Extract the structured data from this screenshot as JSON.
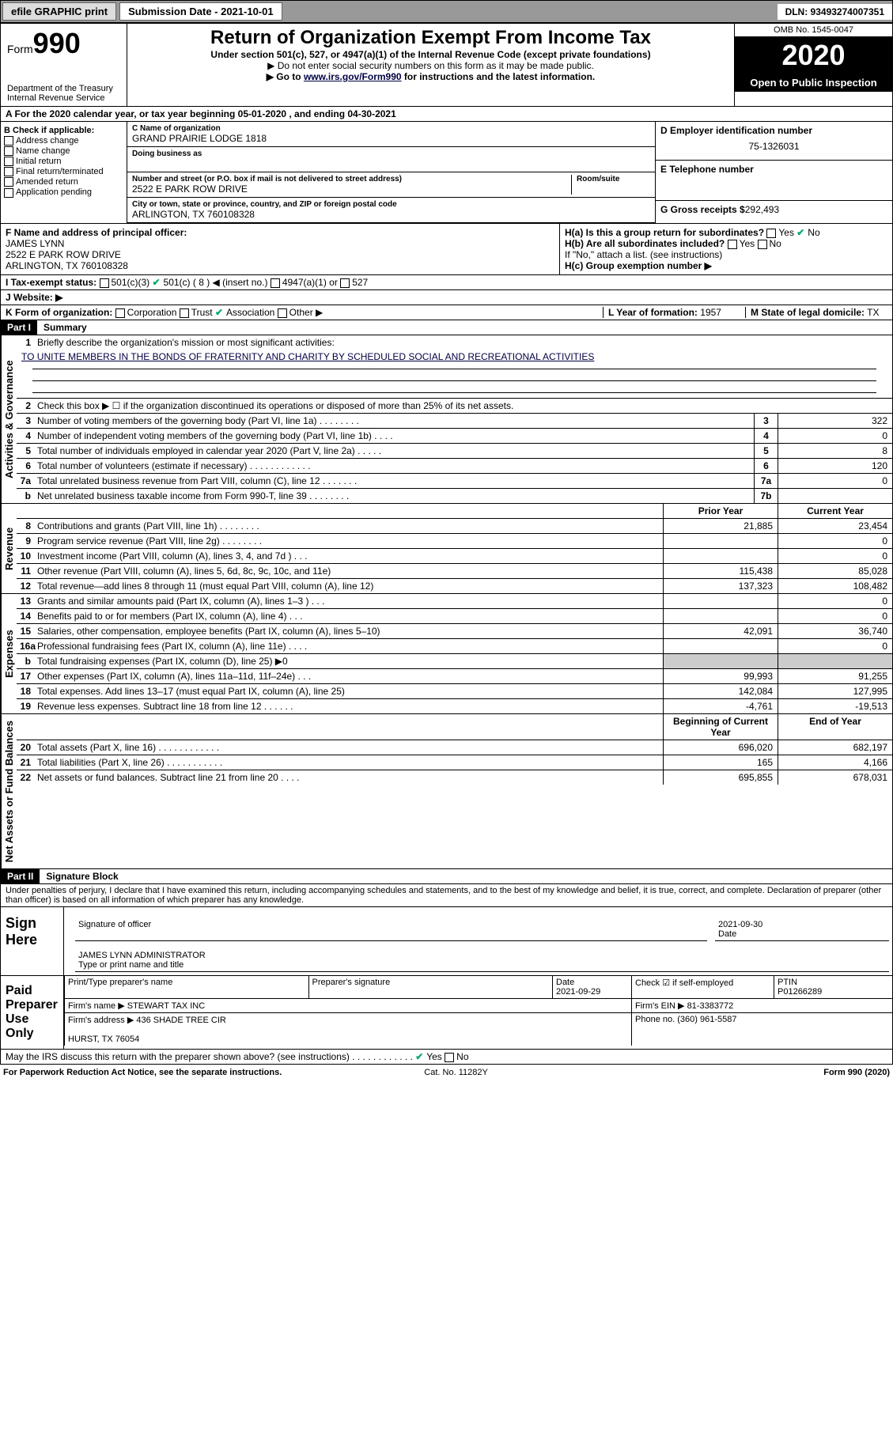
{
  "topbar": {
    "efile": "efile GRAPHIC print",
    "subdate_label": "Submission Date - 2021-10-01",
    "dln": "DLN: 93493274007351"
  },
  "header": {
    "form_label": "Form",
    "form_no": "990",
    "dept": "Department of the Treasury Internal Revenue Service",
    "title": "Return of Organization Exempt From Income Tax",
    "sub1": "Under section 501(c), 527, or 4947(a)(1) of the Internal Revenue Code (except private foundations)",
    "sub2": "▶ Do not enter social security numbers on this form as it may be made public.",
    "sub3_pre": "▶ Go to ",
    "sub3_link": "www.irs.gov/Form990",
    "sub3_post": " for instructions and the latest information.",
    "omb": "OMB No. 1545-0047",
    "year": "2020",
    "open": "Open to Public Inspection"
  },
  "a_row": "A For the 2020 calendar year, or tax year beginning 05-01-2020    , and ending 04-30-2021",
  "b": {
    "hdr": "B Check if applicable:",
    "items": [
      "Address change",
      "Name change",
      "Initial return",
      "Final return/terminated",
      "Amended return",
      "Application pending"
    ]
  },
  "c": {
    "name_lbl": "C Name of organization",
    "name": "GRAND PRAIRIE LODGE 1818",
    "dba_lbl": "Doing business as",
    "addr_lbl": "Number and street (or P.O. box if mail is not delivered to street address)",
    "room_lbl": "Room/suite",
    "addr": "2522 E PARK ROW DRIVE",
    "city_lbl": "City or town, state or province, country, and ZIP or foreign postal code",
    "city": "ARLINGTON, TX  760108328"
  },
  "d": {
    "lbl": "D Employer identification number",
    "val": "75-1326031"
  },
  "e": {
    "lbl": "E Telephone number"
  },
  "g": {
    "lbl": "G Gross receipts $",
    "val": "292,493"
  },
  "f": {
    "lbl": "F Name and address of principal officer:",
    "name": "JAMES LYNN",
    "addr": "2522 E PARK ROW DRIVE",
    "city": "ARLINGTON, TX  760108328"
  },
  "h": {
    "a": "H(a)  Is this a group return for subordinates?",
    "a_yes": "Yes",
    "a_no": "No",
    "b": "H(b)  Are all subordinates included?",
    "b_yes": "Yes",
    "b_no": "No",
    "b_note": "If \"No,\" attach a list. (see instructions)",
    "c": "H(c)  Group exemption number ▶"
  },
  "i": {
    "lbl": "I   Tax-exempt status:",
    "o1": "501(c)(3)",
    "o2": "501(c) ( 8 ) ◀ (insert no.)",
    "o3": "4947(a)(1) or",
    "o4": "527"
  },
  "j": {
    "lbl": "J   Website: ▶"
  },
  "k": {
    "lbl": "K Form of organization:",
    "o1": "Corporation",
    "o2": "Trust",
    "o3": "Association",
    "o4": "Other ▶"
  },
  "l": {
    "lbl": "L Year of formation:",
    "val": "1957"
  },
  "m": {
    "lbl": "M State of legal domicile:",
    "val": "TX"
  },
  "parts": {
    "I": "Part I",
    "I_t": "Summary",
    "II": "Part II",
    "II_t": "Signature Block"
  },
  "vtabs": {
    "gov": "Activities & Governance",
    "rev": "Revenue",
    "exp": "Expenses",
    "net": "Net Assets or Fund Balances"
  },
  "summary": {
    "l1": "Briefly describe the organization's mission or most significant activities:",
    "mission": "TO UNITE MEMBERS IN THE BONDS OF FRATERNITY AND CHARITY BY SCHEDULED SOCIAL AND RECREATIONAL ACTIVITIES",
    "l2": "Check this box ▶ ☐  if the organization discontinued its operations or disposed of more than 25% of its net assets.",
    "rows_gov": [
      {
        "n": "3",
        "d": "Number of voting members of the governing body (Part VI, line 1a)   .    .    .    .    .    .    .    .",
        "box": "3",
        "v": "322"
      },
      {
        "n": "4",
        "d": "Number of independent voting members of the governing body (Part VI, line 1b)   .    .    .    .",
        "box": "4",
        "v": "0"
      },
      {
        "n": "5",
        "d": "Total number of individuals employed in calendar year 2020 (Part V, line 2a)   .    .    .    .    .",
        "box": "5",
        "v": "8"
      },
      {
        "n": "6",
        "d": "Total number of volunteers (estimate if necessary)   .    .    .    .    .    .    .    .    .    .    .    .",
        "box": "6",
        "v": "120"
      },
      {
        "n": "7a",
        "d": "Total unrelated business revenue from Part VIII, column (C), line 12   .    .    .    .    .    .    .",
        "box": "7a",
        "v": "0"
      },
      {
        "n": "b",
        "d": "Net unrelated business taxable income from Form 990-T, line 39   .    .    .    .    .    .    .    .",
        "box": "7b",
        "v": ""
      }
    ],
    "hdr_prior": "Prior Year",
    "hdr_curr": "Current Year",
    "rows_rev": [
      {
        "n": "8",
        "d": "Contributions and grants (Part VIII, line 1h)   .    .    .    .    .    .    .    .",
        "p": "21,885",
        "c": "23,454"
      },
      {
        "n": "9",
        "d": "Program service revenue (Part VIII, line 2g)   .    .    .    .    .    .    .    .",
        "p": "",
        "c": "0"
      },
      {
        "n": "10",
        "d": "Investment income (Part VIII, column (A), lines 3, 4, and 7d )   .    .    .",
        "p": "",
        "c": "0"
      },
      {
        "n": "11",
        "d": "Other revenue (Part VIII, column (A), lines 5, 6d, 8c, 9c, 10c, and 11e)",
        "p": "115,438",
        "c": "85,028"
      },
      {
        "n": "12",
        "d": "Total revenue—add lines 8 through 11 (must equal Part VIII, column (A), line 12)",
        "p": "137,323",
        "c": "108,482"
      }
    ],
    "rows_exp": [
      {
        "n": "13",
        "d": "Grants and similar amounts paid (Part IX, column (A), lines 1–3 )   .    .    .",
        "p": "",
        "c": "0"
      },
      {
        "n": "14",
        "d": "Benefits paid to or for members (Part IX, column (A), line 4)   .    .    .",
        "p": "",
        "c": "0"
      },
      {
        "n": "15",
        "d": "Salaries, other compensation, employee benefits (Part IX, column (A), lines 5–10)",
        "p": "42,091",
        "c": "36,740"
      },
      {
        "n": "16a",
        "d": "Professional fundraising fees (Part IX, column (A), line 11e)   .    .    .    .",
        "p": "",
        "c": "0"
      },
      {
        "n": "b",
        "d": "Total fundraising expenses (Part IX, column (D), line 25) ▶0",
        "p": "SHADE",
        "c": "SHADE"
      },
      {
        "n": "17",
        "d": "Other expenses (Part IX, column (A), lines 11a–11d, 11f–24e)   .    .    .",
        "p": "99,993",
        "c": "91,255"
      },
      {
        "n": "18",
        "d": "Total expenses. Add lines 13–17 (must equal Part IX, column (A), line 25)",
        "p": "142,084",
        "c": "127,995"
      },
      {
        "n": "19",
        "d": "Revenue less expenses. Subtract line 18 from line 12   .    .    .    .    .    .",
        "p": "-4,761",
        "c": "-19,513"
      }
    ],
    "hdr_beg": "Beginning of Current Year",
    "hdr_end": "End of Year",
    "rows_net": [
      {
        "n": "20",
        "d": "Total assets (Part X, line 16)   .    .    .    .    .    .    .    .    .    .    .    .",
        "p": "696,020",
        "c": "682,197"
      },
      {
        "n": "21",
        "d": "Total liabilities (Part X, line 26)   .    .    .    .    .    .    .    .    .    .    .",
        "p": "165",
        "c": "4,166"
      },
      {
        "n": "22",
        "d": "Net assets or fund balances. Subtract line 21 from line 20   .    .    .    .",
        "p": "695,855",
        "c": "678,031"
      }
    ]
  },
  "sig_intro": "Under penalties of perjury, I declare that I have examined this return, including accompanying schedules and statements, and to the best of my knowledge and belief, it is true, correct, and complete. Declaration of preparer (other than officer) is based on all information of which preparer has any knowledge.",
  "sign": {
    "left": "Sign Here",
    "sig_lbl": "Signature of officer",
    "date_lbl": "Date",
    "date": "2021-09-30",
    "name": "JAMES LYNN  ADMINISTRATOR",
    "name_lbl": "Type or print name and title"
  },
  "prep": {
    "left": "Paid Preparer Use Only",
    "c1": "Print/Type preparer's name",
    "c2": "Preparer's signature",
    "c3": "Date",
    "c3v": "2021-09-29",
    "c4": "Check ☑ if self-employed",
    "c5": "PTIN",
    "c5v": "P01266289",
    "firm_lbl": "Firm's name    ▶",
    "firm": "STEWART TAX INC",
    "ein_lbl": "Firm's EIN ▶",
    "ein": "81-3383772",
    "addr_lbl": "Firm's address ▶",
    "addr": "436 SHADE TREE CIR",
    "addr2": "HURST, TX  76054",
    "phone_lbl": "Phone no.",
    "phone": "(360) 961-5587"
  },
  "discuss": "May the IRS discuss this return with the preparer shown above? (see instructions)   .    .    .    .    .    .    .    .    .    .    .    .",
  "discuss_yes": "Yes",
  "discuss_no": "No",
  "footer": {
    "left": "For Paperwork Reduction Act Notice, see the separate instructions.",
    "mid": "Cat. No. 11282Y",
    "right": "Form 990 (2020)"
  }
}
